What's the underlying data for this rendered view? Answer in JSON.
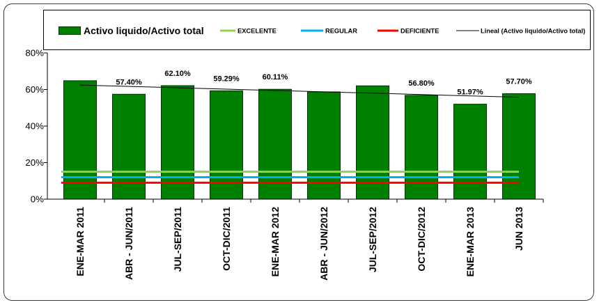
{
  "chart_data": {
    "type": "bar",
    "categories": [
      "ENE-MAR 2011",
      "ABR - JUN/2011",
      "JUL-SEP/2011",
      "OCT-DIC/2011",
      "ENE-MAR 2012",
      "ABR - JUN/2012",
      "JUL-SEP/2012",
      "OCT-DIC/2012",
      "ENE-MAR 2013",
      "JUN 2013"
    ],
    "series": [
      {
        "name": "Activo liquido/Activo total",
        "kind": "bar",
        "color": "#008000",
        "values": [
          64.8,
          57.4,
          62.1,
          59.29,
          60.11,
          58.7,
          62.0,
          56.8,
          51.97,
          57.7
        ],
        "data_labels": [
          "",
          "57.40%",
          "62.10%",
          "59.29%",
          "60.11%",
          "",
          "",
          "56.80%",
          "51.97%",
          "57.70%"
        ]
      },
      {
        "name": "EXCELENTE",
        "kind": "line",
        "color": "#92D050",
        "values": [
          15,
          15,
          15,
          15,
          15,
          15,
          15,
          15,
          15,
          15
        ]
      },
      {
        "name": "REGULAR",
        "kind": "line",
        "color": "#00B0F0",
        "values": [
          12,
          12,
          12,
          12,
          12,
          12,
          12,
          12,
          12,
          12
        ]
      },
      {
        "name": "DEFICIENTE",
        "kind": "line",
        "color": "#FF0000",
        "values": [
          9,
          9,
          9,
          9,
          9,
          9,
          9,
          9,
          9,
          9
        ]
      }
    ],
    "trendline": {
      "name": "Lineal (Activo liquido/Activo total)",
      "type": "linear",
      "series_index": 0,
      "color": "#000000"
    },
    "y_axis": {
      "ylim": [
        0,
        80
      ],
      "ticks": [
        0,
        20,
        40,
        60,
        80
      ],
      "tick_labels": [
        "0%",
        "20%",
        "40%",
        "60%",
        "80%"
      ]
    },
    "grid": false,
    "legend": {
      "position": "top"
    }
  }
}
